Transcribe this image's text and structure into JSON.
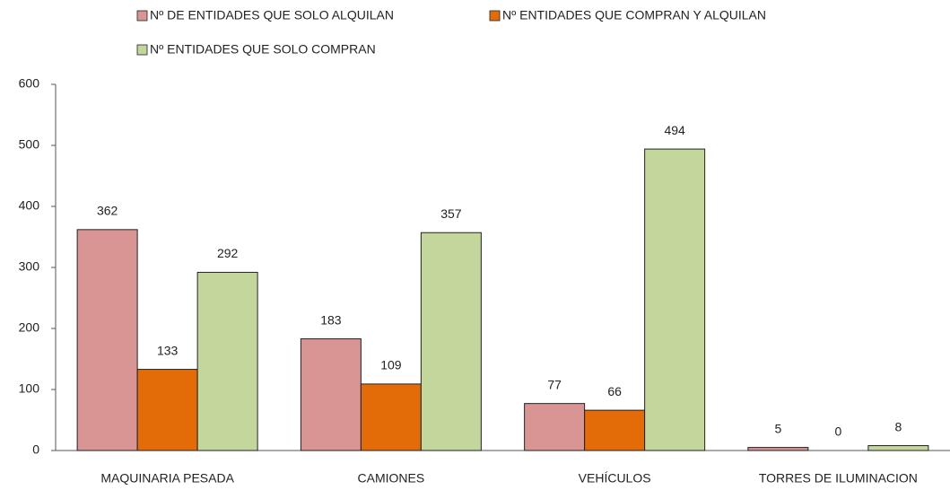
{
  "chart_data": {
    "type": "bar",
    "categories": [
      "MAQUINARIA PESADA",
      "CAMIONES",
      "VEHÍCULOS",
      "TORRES DE ILUMINACION"
    ],
    "series": [
      {
        "name": "Nº DE ENTIDADES QUE SOLO ALQUILAN",
        "color": "#d99594",
        "values": [
          362,
          183,
          77,
          5
        ]
      },
      {
        "name": "Nº ENTIDADES QUE COMPRAN Y ALQUILAN",
        "color": "#e36c09",
        "values": [
          133,
          109,
          66,
          0
        ]
      },
      {
        "name": "Nº ENTIDADES QUE SOLO COMPRAN",
        "color": "#c3d69b",
        "values": [
          292,
          357,
          494,
          8
        ]
      }
    ],
    "ylim": [
      0,
      600
    ],
    "yticks": [
      0,
      100,
      200,
      300,
      400,
      500,
      600
    ],
    "grid": false,
    "legend": "top"
  }
}
